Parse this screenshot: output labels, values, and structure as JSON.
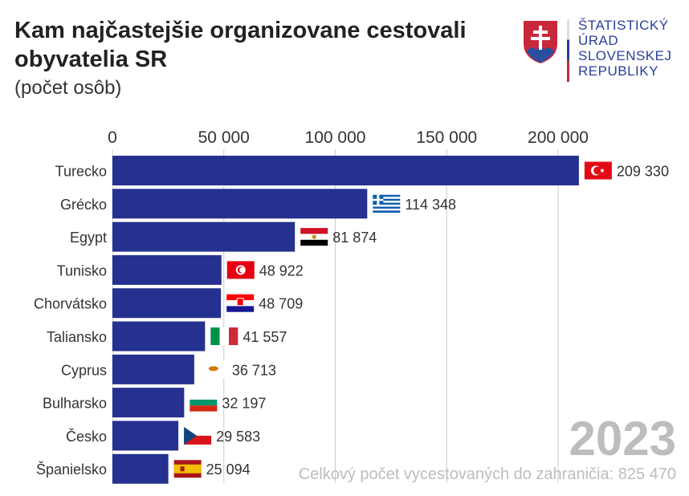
{
  "header": {
    "title": "Kam najčastejšie organizovane cestovali obyvatelia SR",
    "subtitle": "(počet osôb)"
  },
  "logo": {
    "lines": [
      "ŠTATISTICKÝ",
      "ÚRAD",
      "SLOVENSKEJ",
      "REPUBLIKY"
    ]
  },
  "colors": {
    "bar": "#25318f",
    "grid": "#cccccc",
    "year": "#bdbdbd"
  },
  "chart_data": {
    "type": "bar",
    "orientation": "horizontal",
    "title": "Kam najčastejšie organizovane cestovali obyvatelia SR",
    "subtitle": "(počet osôb)",
    "categories": [
      "Turecko",
      "Grécko",
      "Egypt",
      "Tunisko",
      "Chorvátsko",
      "Taliansko",
      "Cyprus",
      "Bulharsko",
      "Česko",
      "Španielsko"
    ],
    "values": [
      209330,
      114348,
      81874,
      48922,
      48709,
      41557,
      36713,
      32197,
      29583,
      25094
    ],
    "value_labels": [
      "209 330",
      "114 348",
      "81 874",
      "48 922",
      "48 709",
      "41 557",
      "36 713",
      "32 197",
      "29 583",
      "25 094"
    ],
    "flags": [
      "turkey-flag",
      "greece-flag",
      "egypt-flag",
      "tunisia-flag",
      "croatia-flag",
      "italy-flag",
      "cyprus-flag",
      "bulgaria-flag",
      "czechia-flag",
      "spain-flag"
    ],
    "xticks": [
      0,
      50000,
      100000,
      150000,
      200000
    ],
    "xtick_labels": [
      "0",
      "50 000",
      "100 000",
      "150 000",
      "200 000"
    ],
    "xlim": [
      0,
      200000
    ],
    "grid": true,
    "xaxis_position": "top",
    "year": "2023",
    "total_note": "Celkový počet vycestovaných do zahraničia: 825 470"
  }
}
